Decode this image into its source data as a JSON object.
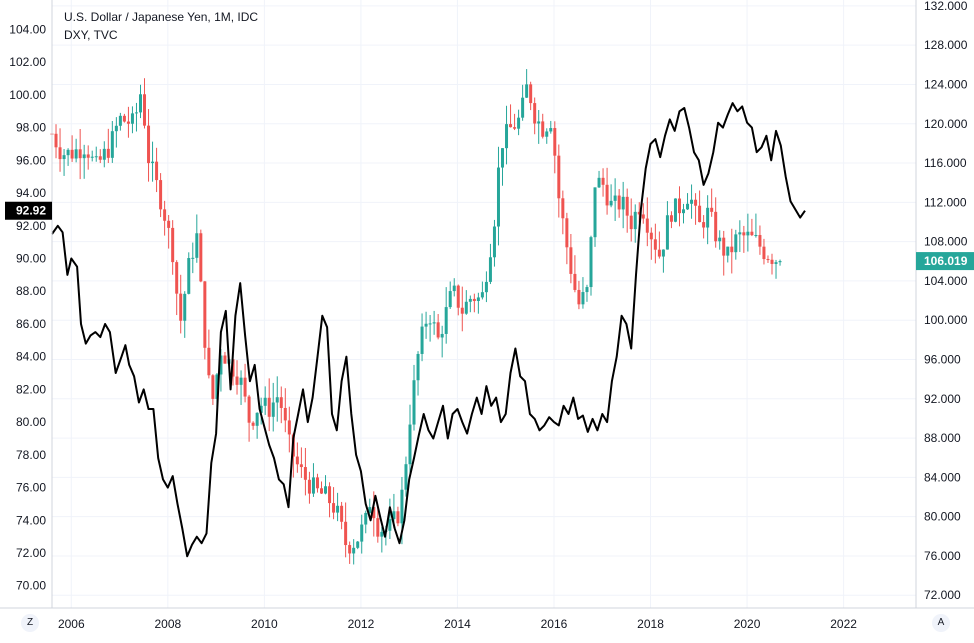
{
  "header": {
    "title": "U.S. Dollar / Japanese Yen, 1M, IDC",
    "subtitle": "DXY, TVC"
  },
  "controls": {
    "left_button": "Z",
    "right_button": "A"
  },
  "colors": {
    "up": "#26a69a",
    "down": "#ef5350",
    "overlay": "#000000",
    "grid": "#f0f3fa",
    "axis_text": "#131722",
    "left_badge": "#000000",
    "right_badge": "#26a69a"
  },
  "chart_data": {
    "type": "candlestick",
    "grid": true,
    "x_axis": {
      "range": [
        2005.6,
        2023.5
      ],
      "ticks": [
        2006,
        2008,
        2010,
        2012,
        2014,
        2016,
        2018,
        2020,
        2022
      ],
      "tick_labels": [
        "2006",
        "2008",
        "2010",
        "2012",
        "2014",
        "2016",
        "2018",
        "2020",
        "2022"
      ]
    },
    "left_axis": {
      "range": [
        68.64,
        105.8
      ],
      "tick_labels": [
        "70.00",
        "72.00",
        "74.00",
        "76.00",
        "78.00",
        "80.00",
        "82.00",
        "84.00",
        "86.00",
        "88.00",
        "90.00",
        "92.00",
        "94.00",
        "96.00",
        "98.00",
        "100.00",
        "102.00",
        "104.00"
      ],
      "last_value_label": "92.92",
      "last_value": 92.92
    },
    "right_axis": {
      "range": [
        70.7,
        132.6
      ],
      "tick_labels": [
        "72.000",
        "76.000",
        "80.000",
        "84.000",
        "88.000",
        "92.000",
        "96.000",
        "100.000",
        "104.000",
        "108.000",
        "112.000",
        "116.000",
        "120.000",
        "124.000",
        "128.000",
        "132.000"
      ],
      "last_value_label": "106.019",
      "last_value": 106.019
    },
    "series": [
      {
        "axis": "right",
        "style": "candles",
        "close_points": [
          [
            2005.6,
            119.0
          ],
          [
            2005.8,
            117.0
          ],
          [
            2006.0,
            117.0
          ],
          [
            2006.3,
            117.8
          ],
          [
            2006.5,
            115.5
          ],
          [
            2006.8,
            117.7
          ],
          [
            2007.0,
            120.5
          ],
          [
            2007.3,
            120.0
          ],
          [
            2007.45,
            123.5
          ],
          [
            2007.6,
            116.5
          ],
          [
            2007.9,
            111.5
          ],
          [
            2008.1,
            107.0
          ],
          [
            2008.25,
            99.5
          ],
          [
            2008.45,
            106.0
          ],
          [
            2008.6,
            108.5
          ],
          [
            2008.75,
            99.0
          ],
          [
            2008.9,
            91.0
          ],
          [
            2009.1,
            97.0
          ],
          [
            2009.3,
            95.5
          ],
          [
            2009.5,
            94.0
          ],
          [
            2009.7,
            89.5
          ],
          [
            2009.9,
            91.5
          ],
          [
            2010.1,
            91.0
          ],
          [
            2010.3,
            92.5
          ],
          [
            2010.5,
            87.5
          ],
          [
            2010.7,
            85.0
          ],
          [
            2010.9,
            83.5
          ],
          [
            2011.1,
            82.5
          ],
          [
            2011.3,
            82.0
          ],
          [
            2011.5,
            80.5
          ],
          [
            2011.7,
            77.0
          ],
          [
            2011.9,
            77.5
          ],
          [
            2012.1,
            79.5
          ],
          [
            2012.2,
            82.0
          ],
          [
            2012.35,
            79.0
          ],
          [
            2012.55,
            78.5
          ],
          [
            2012.8,
            80.5
          ],
          [
            2012.9,
            84.0
          ],
          [
            2013.0,
            89.5
          ],
          [
            2013.2,
            97.0
          ],
          [
            2013.4,
            101.0
          ],
          [
            2013.6,
            98.0
          ],
          [
            2013.9,
            103.0
          ],
          [
            2014.1,
            101.0
          ],
          [
            2014.3,
            102.5
          ],
          [
            2014.5,
            102.0
          ],
          [
            2014.75,
            109.5
          ],
          [
            2014.9,
            118.0
          ],
          [
            2015.1,
            119.5
          ],
          [
            2015.3,
            120.5
          ],
          [
            2015.45,
            124.0
          ],
          [
            2015.6,
            121.0
          ],
          [
            2015.75,
            119.5
          ],
          [
            2015.95,
            120.5
          ],
          [
            2016.1,
            112.5
          ],
          [
            2016.3,
            106.5
          ],
          [
            2016.5,
            101.5
          ],
          [
            2016.7,
            103.0
          ],
          [
            2016.85,
            114.0
          ],
          [
            2017.0,
            114.0
          ],
          [
            2017.2,
            111.5
          ],
          [
            2017.4,
            112.0
          ],
          [
            2017.6,
            110.0
          ],
          [
            2017.8,
            112.0
          ],
          [
            2018.0,
            109.0
          ],
          [
            2018.2,
            106.5
          ],
          [
            2018.4,
            111.0
          ],
          [
            2018.6,
            111.5
          ],
          [
            2018.8,
            113.0
          ],
          [
            2019.0,
            109.5
          ],
          [
            2019.2,
            111.0
          ],
          [
            2019.4,
            108.0
          ],
          [
            2019.6,
            106.5
          ],
          [
            2019.8,
            108.5
          ],
          [
            2020.0,
            108.5
          ],
          [
            2020.2,
            108.0
          ],
          [
            2020.35,
            107.0
          ],
          [
            2020.5,
            106.5
          ],
          [
            2020.7,
            106.019
          ]
        ]
      },
      {
        "name": "DXY, TVC",
        "axis": "left",
        "style": "line",
        "points": [
          [
            2005.6,
            91.5
          ],
          [
            2005.72,
            92.0
          ],
          [
            2005.82,
            91.6
          ],
          [
            2005.92,
            89.0
          ],
          [
            2006.0,
            90.0
          ],
          [
            2006.12,
            89.5
          ],
          [
            2006.2,
            86.0
          ],
          [
            2006.3,
            84.8
          ],
          [
            2006.4,
            85.3
          ],
          [
            2006.5,
            85.5
          ],
          [
            2006.6,
            85.2
          ],
          [
            2006.7,
            86.0
          ],
          [
            2006.8,
            85.5
          ],
          [
            2006.92,
            83.0
          ],
          [
            2007.04,
            84.0
          ],
          [
            2007.12,
            84.7
          ],
          [
            2007.2,
            83.5
          ],
          [
            2007.3,
            82.8
          ],
          [
            2007.4,
            81.2
          ],
          [
            2007.5,
            82.0
          ],
          [
            2007.6,
            80.8
          ],
          [
            2007.7,
            80.8
          ],
          [
            2007.8,
            77.8
          ],
          [
            2007.9,
            76.5
          ],
          [
            2008.0,
            76.0
          ],
          [
            2008.1,
            76.7
          ],
          [
            2008.2,
            75.0
          ],
          [
            2008.3,
            73.5
          ],
          [
            2008.4,
            71.8
          ],
          [
            2008.5,
            72.5
          ],
          [
            2008.6,
            73.0
          ],
          [
            2008.7,
            72.6
          ],
          [
            2008.8,
            73.2
          ],
          [
            2008.9,
            77.5
          ],
          [
            2009.0,
            79.3
          ],
          [
            2009.1,
            85.5
          ],
          [
            2009.2,
            86.8
          ],
          [
            2009.3,
            82.0
          ],
          [
            2009.4,
            86.5
          ],
          [
            2009.5,
            88.5
          ],
          [
            2009.6,
            85.3
          ],
          [
            2009.7,
            82.5
          ],
          [
            2009.8,
            83.5
          ],
          [
            2009.9,
            80.8
          ],
          [
            2010.0,
            79.7
          ],
          [
            2010.1,
            78.6
          ],
          [
            2010.2,
            77.8
          ],
          [
            2010.3,
            76.5
          ],
          [
            2010.4,
            76.2
          ],
          [
            2010.5,
            74.8
          ],
          [
            2010.6,
            79.0
          ],
          [
            2010.7,
            80.5
          ],
          [
            2010.8,
            82.0
          ],
          [
            2010.9,
            80.0
          ],
          [
            2011.0,
            81.5
          ],
          [
            2011.1,
            84.0
          ],
          [
            2011.2,
            86.5
          ],
          [
            2011.3,
            85.8
          ],
          [
            2011.4,
            80.5
          ],
          [
            2011.5,
            79.5
          ],
          [
            2011.6,
            82.5
          ],
          [
            2011.7,
            84.0
          ],
          [
            2011.8,
            80.5
          ],
          [
            2011.9,
            78.0
          ],
          [
            2012.0,
            77.0
          ],
          [
            2012.1,
            75.0
          ],
          [
            2012.2,
            74.0
          ],
          [
            2012.3,
            75.5
          ],
          [
            2012.4,
            74.2
          ],
          [
            2012.5,
            73.0
          ],
          [
            2012.6,
            74.8
          ],
          [
            2012.7,
            73.5
          ],
          [
            2012.8,
            72.6
          ],
          [
            2012.9,
            74.0
          ],
          [
            2013.0,
            76.5
          ],
          [
            2013.1,
            77.8
          ],
          [
            2013.2,
            79.2
          ],
          [
            2013.3,
            80.5
          ],
          [
            2013.4,
            79.5
          ],
          [
            2013.5,
            79.0
          ],
          [
            2013.6,
            80.0
          ],
          [
            2013.7,
            81.0
          ],
          [
            2013.8,
            79.0
          ],
          [
            2013.9,
            80.5
          ],
          [
            2014.0,
            80.8
          ],
          [
            2014.1,
            80.0
          ],
          [
            2014.2,
            79.3
          ],
          [
            2014.3,
            80.5
          ],
          [
            2014.4,
            81.5
          ],
          [
            2014.5,
            80.5
          ],
          [
            2014.6,
            82.2
          ],
          [
            2014.7,
            81.0
          ],
          [
            2014.8,
            81.5
          ],
          [
            2014.9,
            80.0
          ],
          [
            2015.0,
            80.5
          ],
          [
            2015.1,
            83.0
          ],
          [
            2015.2,
            84.5
          ],
          [
            2015.3,
            82.8
          ],
          [
            2015.4,
            82.5
          ],
          [
            2015.5,
            80.5
          ],
          [
            2015.6,
            80.2
          ],
          [
            2015.7,
            79.5
          ],
          [
            2015.8,
            79.8
          ],
          [
            2015.9,
            80.3
          ],
          [
            2016.0,
            80.0
          ],
          [
            2016.1,
            79.8
          ],
          [
            2016.2,
            81.0
          ],
          [
            2016.3,
            80.5
          ],
          [
            2016.4,
            81.5
          ],
          [
            2016.5,
            80.2
          ],
          [
            2016.6,
            80.4
          ],
          [
            2016.7,
            79.4
          ],
          [
            2016.8,
            80.2
          ],
          [
            2016.9,
            79.5
          ],
          [
            2017.0,
            80.5
          ],
          [
            2017.1,
            80.0
          ],
          [
            2017.2,
            82.5
          ],
          [
            2017.3,
            84.0
          ],
          [
            2017.4,
            86.5
          ],
          [
            2017.5,
            86.0
          ],
          [
            2017.6,
            84.5
          ],
          [
            2017.7,
            89.0
          ],
          [
            2017.8,
            93.0
          ],
          [
            2017.9,
            95.5
          ],
          [
            2018.0,
            97.0
          ],
          [
            2018.1,
            97.3
          ],
          [
            2018.2,
            96.2
          ],
          [
            2018.3,
            97.5
          ],
          [
            2018.4,
            98.5
          ],
          [
            2018.5,
            97.8
          ],
          [
            2018.6,
            99.0
          ],
          [
            2018.7,
            99.2
          ],
          [
            2018.8,
            98.0
          ],
          [
            2018.9,
            96.5
          ],
          [
            2019.0,
            96.0
          ],
          [
            2019.1,
            94.5
          ],
          [
            2019.2,
            95.2
          ],
          [
            2019.3,
            96.5
          ],
          [
            2019.4,
            98.3
          ],
          [
            2019.5,
            98.0
          ],
          [
            2019.6,
            98.8
          ],
          [
            2019.7,
            99.5
          ],
          [
            2019.8,
            99.0
          ],
          [
            2019.9,
            99.3
          ],
          [
            2020.0,
            98.3
          ],
          [
            2020.1,
            98.0
          ],
          [
            2020.2,
            96.5
          ],
          [
            2020.3,
            96.8
          ],
          [
            2020.4,
            97.5
          ],
          [
            2020.5,
            96.0
          ],
          [
            2020.6,
            97.8
          ],
          [
            2020.7,
            96.9
          ],
          [
            2020.8,
            95.0
          ],
          [
            2020.9,
            93.5
          ],
          [
            2021.0,
            93.0
          ],
          [
            2021.1,
            92.5
          ],
          [
            2021.2,
            92.92
          ]
        ]
      }
    ]
  }
}
